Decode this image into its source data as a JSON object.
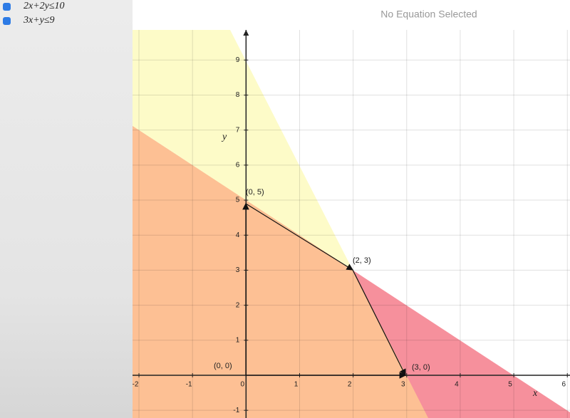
{
  "sidebar": {
    "equations": [
      "2x+2y≤10",
      "3x+y≤9"
    ]
  },
  "header": {
    "status": "No Equation Selected"
  },
  "graph": {
    "x_label": "x",
    "y_label": "y",
    "xlim": [
      -2.12,
      6.05
    ],
    "ylim": [
      -1.22,
      9.86
    ],
    "xticks": [
      -2,
      -1,
      0,
      1,
      2,
      3,
      4,
      5,
      6
    ],
    "yticks": [
      -1,
      1,
      2,
      3,
      4,
      5,
      6,
      7,
      8,
      9
    ],
    "points": [
      "(0, 0)",
      "(0, 5)",
      "(2, 3)",
      "(3, 0)"
    ]
  }
}
